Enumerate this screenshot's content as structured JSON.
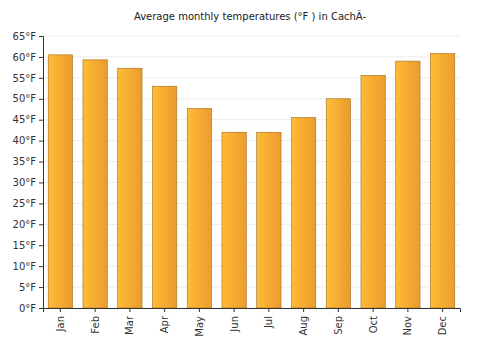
{
  "chart_data": {
    "type": "bar",
    "title": "Average monthly temperatures (°F ) in CachÃ-",
    "categories": [
      "Jan",
      "Feb",
      "Mar",
      "Apr",
      "May",
      "Jun",
      "Jul",
      "Aug",
      "Sep",
      "Oct",
      "Nov",
      "Dec"
    ],
    "values": [
      60.5,
      59.3,
      57.3,
      53,
      47.7,
      42,
      42,
      45.5,
      50,
      55.6,
      59,
      60.8
    ],
    "color": "#f8a530",
    "ylim": [
      0,
      65
    ],
    "yticks": [
      {
        "value": 0,
        "label": "0°F"
      },
      {
        "value": 5,
        "label": "5°F"
      },
      {
        "value": 10,
        "label": "10°F"
      },
      {
        "value": 15,
        "label": "15°F"
      },
      {
        "value": 20,
        "label": "20°F"
      },
      {
        "value": 25,
        "label": "25°F"
      },
      {
        "value": 30,
        "label": "30°F"
      },
      {
        "value": 35,
        "label": "35°F"
      },
      {
        "value": 40,
        "label": "40°F"
      },
      {
        "value": 45,
        "label": "45°F"
      },
      {
        "value": 50,
        "label": "50°F"
      },
      {
        "value": 55,
        "label": "55°F"
      },
      {
        "value": 60,
        "label": "60°F"
      },
      {
        "value": 65,
        "label": "65°F"
      }
    ],
    "grid": true
  }
}
